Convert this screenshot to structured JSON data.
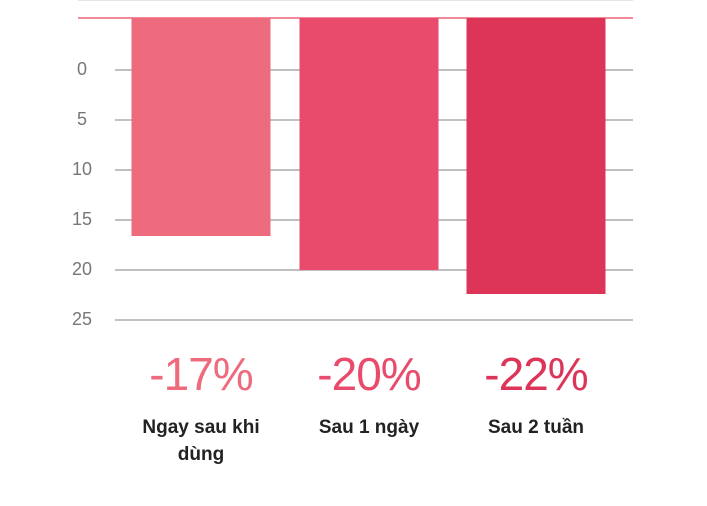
{
  "chart_data": {
    "type": "bar",
    "categories": [
      "Ngay sau khi dùng",
      "Sau 1 ngày",
      "Sau 2 tuần"
    ],
    "values": [
      -16.6,
      -20,
      -22.4
    ],
    "value_labels": [
      "-17%",
      "-20%",
      "-22%"
    ],
    "colors": [
      "#ee6b7e",
      "#e84b6b",
      "#dd3558"
    ],
    "ylim": [
      -25,
      5.2
    ],
    "yticks": [
      0,
      {
        "value": -5,
        "label": "5"
      },
      {
        "value": -10,
        "label": "10"
      },
      {
        "value": -15,
        "label": "15"
      },
      {
        "value": -20,
        "label": "20"
      },
      {
        "value": -25,
        "label": "25"
      }
    ],
    "grid": true
  }
}
